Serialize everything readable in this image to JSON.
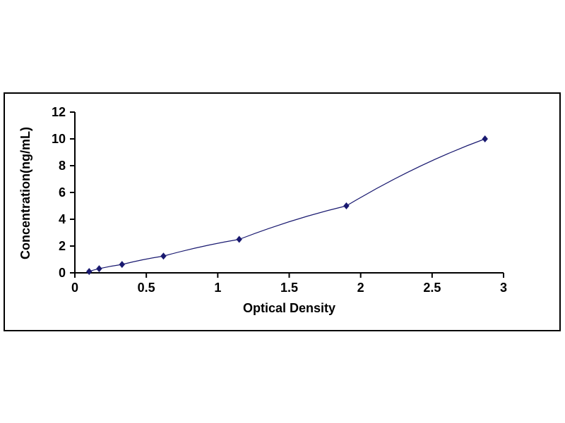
{
  "page": {
    "background_color": "#ffffff"
  },
  "chart_data": {
    "type": "line",
    "title": "",
    "xlabel": "Optical Density",
    "ylabel": "Concentration(ng/mL)",
    "x": [
      0.1,
      0.17,
      0.33,
      0.62,
      1.15,
      1.9,
      2.87
    ],
    "y": [
      0.1,
      0.312,
      0.625,
      1.25,
      2.5,
      5,
      10
    ],
    "xlim": [
      0,
      3
    ],
    "ylim": [
      0,
      12
    ],
    "x_ticks": [
      0,
      0.5,
      1,
      1.5,
      2,
      2.5,
      3
    ],
    "x_tick_labels": [
      "0",
      "0.5",
      "1",
      "1.5",
      "2",
      "2.5",
      "3"
    ],
    "y_ticks": [
      0,
      2,
      4,
      6,
      8,
      10,
      12
    ],
    "y_tick_labels": [
      "0",
      "2",
      "4",
      "6",
      "8",
      "10",
      "12"
    ],
    "grid": false,
    "legend": "none",
    "marker": "diamond",
    "line_color": "#191970",
    "marker_color": "#191970",
    "axis_color": "#000000",
    "frame_border_color": "#000000"
  }
}
